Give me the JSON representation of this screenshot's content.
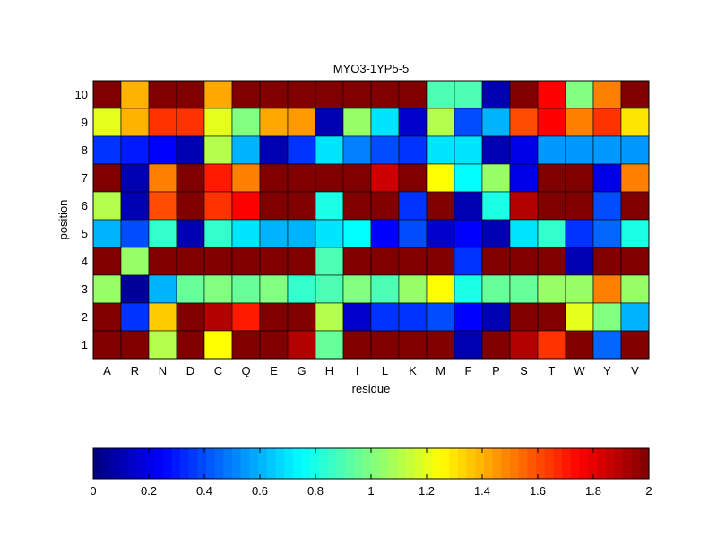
{
  "chart_data": {
    "type": "heatmap",
    "title": "MYO3-1YP5-5",
    "xlabel": "residue",
    "ylabel": "position",
    "colormap": "jet",
    "clim": [
      0,
      2
    ],
    "x_categories": [
      "A",
      "R",
      "N",
      "D",
      "C",
      "Q",
      "E",
      "G",
      "H",
      "I",
      "L",
      "K",
      "M",
      "F",
      "P",
      "S",
      "T",
      "W",
      "Y",
      "V"
    ],
    "y_categories": [
      "10",
      "9",
      "8",
      "7",
      "6",
      "5",
      "4",
      "3",
      "2",
      "1"
    ],
    "values": [
      [
        2.0,
        1.4,
        2.0,
        2.0,
        1.42,
        2.0,
        2.0,
        2.0,
        2.0,
        2.0,
        2.0,
        2.0,
        0.9,
        0.9,
        0.1,
        2.0,
        1.75,
        1.0,
        1.5,
        2.0
      ],
      [
        1.2,
        1.4,
        1.65,
        1.65,
        1.2,
        1.0,
        1.42,
        1.45,
        0.1,
        1.05,
        0.7,
        0.15,
        1.1,
        0.4,
        0.6,
        1.6,
        1.75,
        1.5,
        1.65,
        1.3
      ],
      [
        0.35,
        0.3,
        0.25,
        0.1,
        1.1,
        0.6,
        0.1,
        0.35,
        0.7,
        0.5,
        0.4,
        0.35,
        0.7,
        0.7,
        0.1,
        0.2,
        0.55,
        0.55,
        0.55,
        0.55
      ],
      [
        2.0,
        0.1,
        1.5,
        2.0,
        1.7,
        1.5,
        2.0,
        2.0,
        2.0,
        2.0,
        1.85,
        2.0,
        1.25,
        0.75,
        1.05,
        0.2,
        2.0,
        2.0,
        0.2,
        1.5
      ],
      [
        1.1,
        0.1,
        1.6,
        2.0,
        1.65,
        1.75,
        2.0,
        2.0,
        0.8,
        2.0,
        2.0,
        0.35,
        2.0,
        0.1,
        0.8,
        1.9,
        2.0,
        2.0,
        0.4,
        2.0
      ],
      [
        0.6,
        0.4,
        0.85,
        0.1,
        0.85,
        0.7,
        0.6,
        0.6,
        0.7,
        0.75,
        0.25,
        0.4,
        0.15,
        0.25,
        0.1,
        0.7,
        0.85,
        0.35,
        0.45,
        0.8
      ],
      [
        2.0,
        1.05,
        2.0,
        2.0,
        2.0,
        2.0,
        2.0,
        2.0,
        0.9,
        2.0,
        2.0,
        2.0,
        2.0,
        0.35,
        2.0,
        2.0,
        2.0,
        0.1,
        2.0,
        2.0
      ],
      [
        1.05,
        0.05,
        0.6,
        0.95,
        1.0,
        0.95,
        1.0,
        0.85,
        0.9,
        1.0,
        0.9,
        1.05,
        1.25,
        0.8,
        0.95,
        0.95,
        1.05,
        1.05,
        1.5,
        1.05
      ],
      [
        2.0,
        0.35,
        1.35,
        2.0,
        1.9,
        1.7,
        2.0,
        2.0,
        1.1,
        0.15,
        0.35,
        0.35,
        0.4,
        0.25,
        0.1,
        2.0,
        2.0,
        1.2,
        1.0,
        0.6
      ],
      [
        2.0,
        2.0,
        1.1,
        2.0,
        1.25,
        2.0,
        2.0,
        1.9,
        0.95,
        2.0,
        2.0,
        2.0,
        2.0,
        0.1,
        2.0,
        1.9,
        1.65,
        2.0,
        0.45,
        2.0
      ]
    ],
    "colorbar": {
      "ticks": [
        "0",
        "0.2",
        "0.4",
        "0.6",
        "0.8",
        "1",
        "1.2",
        "1.4",
        "1.6",
        "1.8",
        "2"
      ],
      "placement": "bottom"
    },
    "grid": false,
    "legend": "none"
  }
}
